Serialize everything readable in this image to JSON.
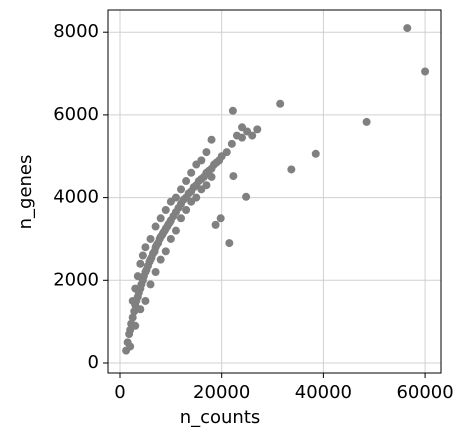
{
  "chart_data": {
    "type": "scatter",
    "x_label": "n_counts",
    "y_label": "n_genes",
    "color": "#808080",
    "grid": true,
    "xlim": [
      -2360,
      63130
    ],
    "ylim": [
      -242,
      8537
    ],
    "xticks": [
      0,
      20000,
      40000,
      60000
    ],
    "yticks": [
      0,
      2000,
      4000,
      6000,
      8000
    ],
    "x": [
      1200,
      1500,
      1800,
      2000,
      2200,
      2500,
      2800,
      3000,
      3200,
      3500,
      3700,
      4000,
      4200,
      4500,
      4700,
      5000,
      5200,
      5500,
      5800,
      6000,
      6200,
      6500,
      6800,
      7000,
      7200,
      7500,
      7800,
      8000,
      8300,
      8500,
      8800,
      9000,
      9300,
      9500,
      9800,
      10000,
      10500,
      11000,
      11500,
      12000,
      12500,
      13000,
      13500,
      14000,
      14500,
      15000,
      15500,
      16000,
      16500,
      17000,
      17500,
      18000,
      18500,
      19000,
      19500,
      20000,
      21000,
      22000,
      23000,
      24000,
      25000,
      27000,
      2500,
      3000,
      3500,
      4000,
      4500,
      5000,
      6000,
      7000,
      8000,
      9000,
      10000,
      11000,
      12000,
      13000,
      14000,
      15000,
      16000,
      17000,
      18000,
      2000,
      3000,
      4000,
      5000,
      6000,
      7000,
      8000,
      9000,
      10000,
      11000,
      12000,
      13000,
      14000,
      15000,
      16000,
      17000,
      18000,
      56500,
      60000,
      48500,
      38500,
      33700,
      31500,
      24800,
      22200,
      21500,
      19800,
      18800,
      22300,
      24000,
      26000
    ],
    "y": [
      300,
      500,
      700,
      800,
      950,
      1100,
      1250,
      1400,
      1500,
      1600,
      1700,
      1800,
      1900,
      2000,
      2100,
      2200,
      2250,
      2350,
      2450,
      2500,
      2550,
      2650,
      2700,
      2800,
      2850,
      2900,
      3000,
      3050,
      3100,
      3150,
      3200,
      3250,
      3300,
      3350,
      3400,
      3450,
      3550,
      3650,
      3750,
      3850,
      3950,
      4000,
      4100,
      4150,
      4250,
      4300,
      4400,
      4450,
      4500,
      4600,
      4650,
      4700,
      4800,
      4850,
      4900,
      5000,
      5100,
      5300,
      5500,
      5450,
      5600,
      5650,
      1500,
      1800,
      2100,
      2400,
      2600,
      2800,
      3000,
      3300,
      3500,
      3700,
      3900,
      4000,
      4200,
      4400,
      4600,
      4800,
      4900,
      5100,
      5400,
      400,
      900,
      1300,
      1500,
      1900,
      2200,
      2500,
      2700,
      3000,
      3200,
      3500,
      3700,
      3900,
      4000,
      4200,
      4300,
      4500,
      8100,
      7050,
      5830,
      5060,
      4680,
      6270,
      4020,
      6100,
      2900,
      3500,
      3340,
      4520,
      5700,
      5500
    ]
  }
}
